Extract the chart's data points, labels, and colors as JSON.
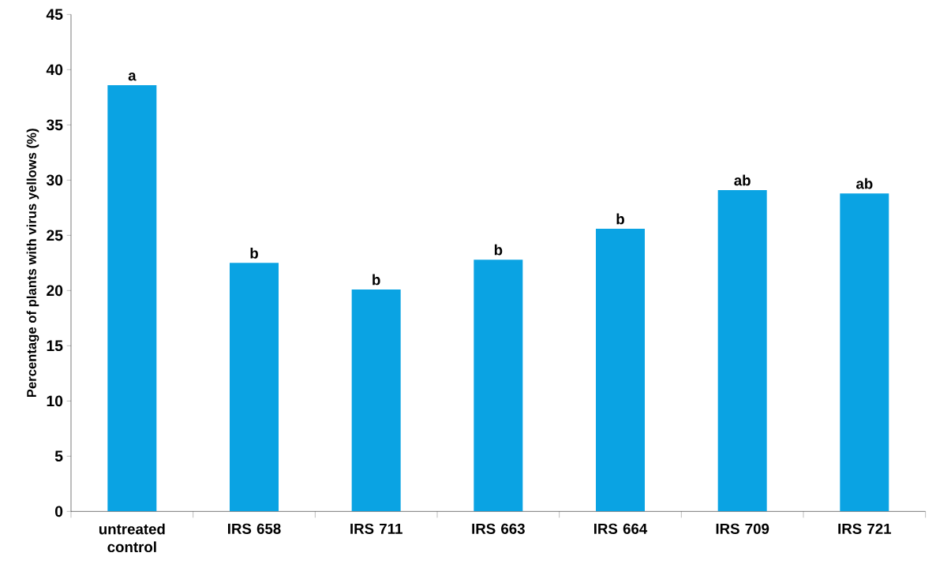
{
  "chart_data": {
    "type": "bar",
    "ylabel": "Percentage of plants with virus yellows (%)",
    "categories": [
      "untreated control",
      "IRS 658",
      "IRS 711",
      "IRS 663",
      "IRS 664",
      "IRS 709",
      "IRS 721"
    ],
    "values": [
      38.6,
      22.5,
      20.1,
      22.8,
      25.6,
      29.1,
      28.8
    ],
    "color": "#0aa3e3",
    "ylim": [
      0,
      45
    ],
    "yticks": [
      0,
      5,
      10,
      15,
      20,
      25,
      30,
      35,
      40,
      45
    ],
    "annotations": [
      {
        "text": "a",
        "x": "untreated control",
        "y": 38.6
      },
      {
        "text": "b",
        "x": "IRS 658",
        "y": 22.5
      },
      {
        "text": "b",
        "x": "IRS 711",
        "y": 20.1
      },
      {
        "text": "b",
        "x": "IRS 663",
        "y": 22.8
      },
      {
        "text": "b",
        "x": "IRS 664",
        "y": 25.6
      },
      {
        "text": "ab",
        "x": "IRS 709",
        "y": 29.1
      },
      {
        "text": "ab",
        "x": "IRS 721",
        "y": 28.8
      }
    ]
  }
}
